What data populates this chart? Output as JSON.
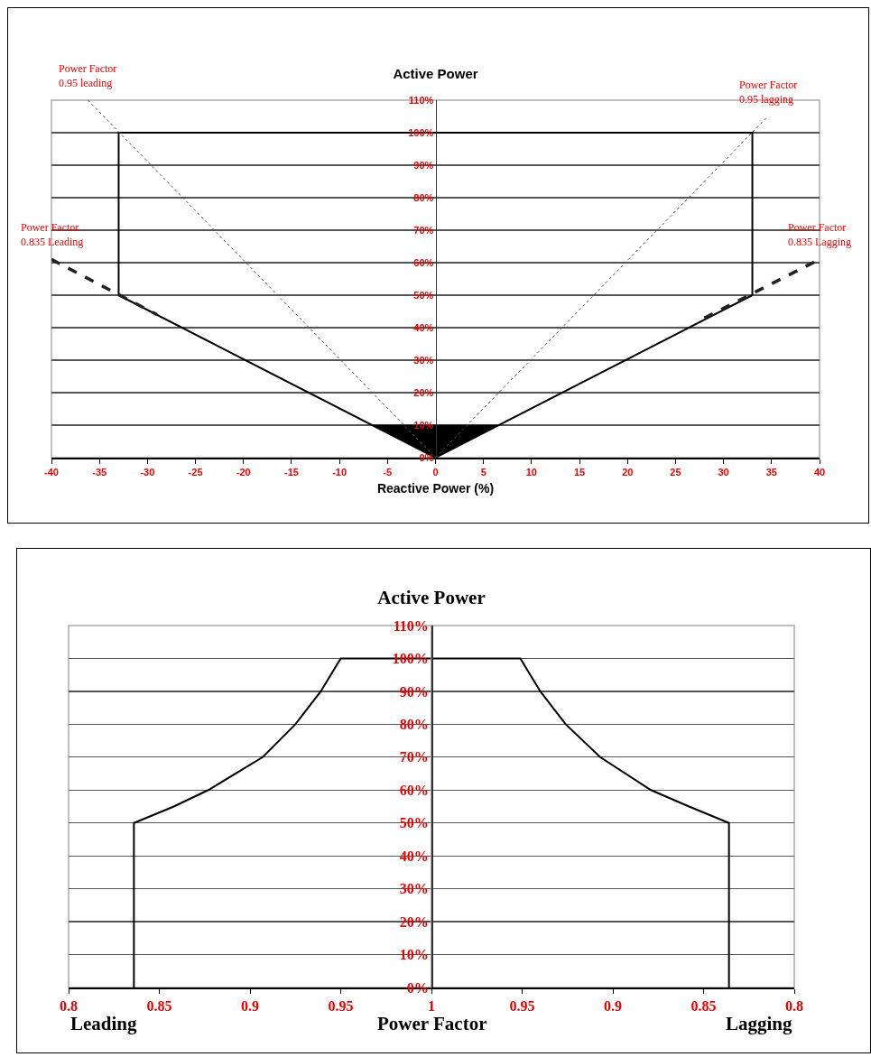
{
  "chart_data": [
    {
      "type": "line",
      "title": "Active Power",
      "xlabel": "Reactive Power (%)",
      "xlim": [
        -40,
        40
      ],
      "xticks": [
        -40,
        -35,
        -30,
        -25,
        -20,
        -15,
        -10,
        -5,
        0,
        5,
        10,
        15,
        20,
        25,
        30,
        35,
        40
      ],
      "ylim": [
        0,
        110
      ],
      "yticks": [
        {
          "value": 0,
          "label": "0%"
        },
        {
          "value": 10,
          "label": "10%"
        },
        {
          "value": 20,
          "label": "20%"
        },
        {
          "value": 30,
          "label": "30%"
        },
        {
          "value": 40,
          "label": "40%"
        },
        {
          "value": 50,
          "label": "50%"
        },
        {
          "value": 60,
          "label": "60%"
        },
        {
          "value": 70,
          "label": "70%"
        },
        {
          "value": 80,
          "label": "80%"
        },
        {
          "value": 90,
          "label": "90%"
        },
        {
          "value": 100,
          "label": "100%"
        },
        {
          "value": 110,
          "label": "110%"
        }
      ],
      "grid": "y",
      "marker": "none",
      "series": [
        {
          "color": "#000000",
          "line_style": "solid",
          "x": [
            -33,
            0,
            33
          ],
          "values": [
            50,
            0,
            50
          ]
        },
        {
          "color": "#000000",
          "line_style": "solid",
          "x": [
            -33,
            -33,
            33,
            33
          ],
          "values": [
            50,
            100,
            100,
            50
          ]
        },
        {
          "type": "area",
          "color": "#000000",
          "line_style": "solid",
          "x": [
            -6.5,
            0,
            6.5,
            -6.5
          ],
          "values": [
            10,
            0,
            10,
            10
          ]
        },
        {
          "color": "#555555",
          "line_style": "dotted",
          "x": [
            -36.2,
            0
          ],
          "values": [
            110,
            0
          ]
        },
        {
          "color": "#555555",
          "line_style": "dotted",
          "x": [
            0,
            34.6
          ],
          "values": [
            0,
            105
          ]
        },
        {
          "color": "#222222",
          "line_style": "dashed",
          "x": [
            -40,
            -29
          ],
          "values": [
            61,
            44
          ]
        },
        {
          "color": "#222222",
          "line_style": "dashed",
          "x": [
            28,
            40
          ],
          "values": [
            43,
            61
          ]
        }
      ],
      "annotations": [
        {
          "text": "Power Factor\n0.95 leading",
          "x": -36.2,
          "y": 110
        },
        {
          "text": "Power Factor\n0.95 lagging",
          "x": 34.6,
          "y": 105
        },
        {
          "text": "Power Factor\n0.835 Leading",
          "x": -40,
          "y": 61
        },
        {
          "text": "Power Factor\n0.835 Lagging",
          "x": 40,
          "y": 61
        }
      ]
    },
    {
      "type": "line",
      "title": "Active Power",
      "xlabel": "Power Factor",
      "xlim": [
        0.8,
        1
      ],
      "xticks": [
        0.8,
        0.85,
        0.9,
        0.95,
        1
      ],
      "ylim": [
        0,
        110
      ],
      "yticks": [
        {
          "value": 0,
          "label": "0%"
        },
        {
          "value": 10,
          "label": "10%"
        },
        {
          "value": 20,
          "label": "20%"
        },
        {
          "value": 30,
          "label": "30%"
        },
        {
          "value": 40,
          "label": "40%"
        },
        {
          "value": 50,
          "label": "50%"
        },
        {
          "value": 60,
          "label": "60%"
        },
        {
          "value": 70,
          "label": "70%"
        },
        {
          "value": 80,
          "label": "80%"
        },
        {
          "value": 90,
          "label": "90%"
        },
        {
          "value": 100,
          "label": "100%"
        },
        {
          "value": 110,
          "label": "110%"
        }
      ],
      "grid": "y",
      "marker": "none",
      "series": [
        {
          "color": "#000000",
          "line_style": "solid",
          "x": [
            0.836,
            0.836,
            0.858,
            0.877,
            0.907,
            0.925,
            0.939,
            0.95,
            1
          ],
          "values": [
            0,
            50,
            55,
            60,
            70,
            80,
            90,
            100,
            100
          ]
        }
      ],
      "annotations": [
        "Leading"
      ]
    },
    {
      "type": "line",
      "xlim": [
        1,
        0.8
      ],
      "xticks": [
        0.95,
        0.9,
        0.85,
        0.8
      ],
      "ylim": [
        0,
        110
      ],
      "yticks": [
        0,
        10,
        20,
        30,
        40,
        50,
        60,
        70,
        80,
        90,
        100,
        110
      ],
      "tick_labels": "x",
      "grid": "y",
      "marker": "none",
      "series": [
        {
          "color": "#000000",
          "line_style": "solid",
          "x": [
            1,
            0.951,
            0.94,
            0.926,
            0.907,
            0.879,
            0.858,
            0.836,
            0.836
          ],
          "values": [
            100,
            100,
            90,
            80,
            70,
            60,
            55,
            50,
            0
          ]
        }
      ],
      "annotations": [
        "Lagging"
      ]
    }
  ]
}
